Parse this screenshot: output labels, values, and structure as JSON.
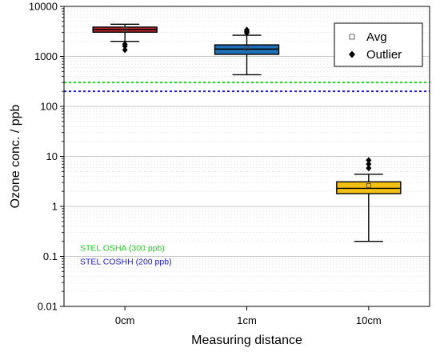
{
  "chart_data": {
    "type": "box",
    "xlabel": "Measuring distance",
    "ylabel": "Ozone conc. / ppb",
    "yscale": "log",
    "ylim": [
      0.01,
      10000
    ],
    "yticks": [
      {
        "value": 0.01,
        "label": "0.01"
      },
      {
        "value": 0.1,
        "label": "0.1"
      },
      {
        "value": 1,
        "label": "1"
      },
      {
        "value": 10,
        "label": "10"
      },
      {
        "value": 100,
        "label": "100"
      },
      {
        "value": 1000,
        "label": "1000"
      },
      {
        "value": 10000,
        "label": "10000"
      }
    ],
    "grid": true,
    "legend_position": "top-right",
    "legend": [
      {
        "label": "Avg",
        "marker": "open-square"
      },
      {
        "label": "Outlier",
        "marker": "filled-diamond"
      }
    ],
    "categories": [
      "0cm",
      "1cm",
      "10cm"
    ],
    "boxes": [
      {
        "category": "0cm",
        "whisker_low": 2000,
        "q1": 3050,
        "median": 3450,
        "q3": 3850,
        "whisker_high": 4400,
        "mean": 3450,
        "outliers": [
          1350,
          1600,
          1750
        ],
        "color": "#c0282d"
      },
      {
        "category": "1cm",
        "whisker_low": 430,
        "q1": 1100,
        "median": 1400,
        "q3": 1700,
        "whisker_high": 2650,
        "mean": 1450,
        "outliers": [
          2950,
          3150,
          3400
        ],
        "color": "#1f6fb5"
      },
      {
        "category": "10cm",
        "whisker_low": 0.2,
        "q1": 1.8,
        "median": 2.3,
        "q3": 3.1,
        "whisker_high": 4.4,
        "mean": 2.6,
        "outliers": [
          5.8,
          7.0,
          8.4
        ],
        "color": "#f2c012"
      }
    ],
    "reference_lines": [
      {
        "label": "STEL OSHA (300 ppb)",
        "value": 300,
        "color": "#22cc22"
      },
      {
        "label": "STEL COSHH (200 ppb)",
        "value": 200,
        "color": "#2222cc"
      }
    ]
  }
}
